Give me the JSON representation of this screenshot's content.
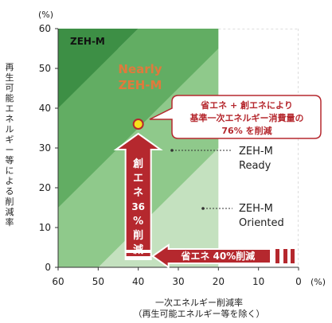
{
  "chart_data": {
    "type": "area",
    "x_axis": {
      "reversed": true,
      "range": [
        60,
        0
      ],
      "ticks": [
        60,
        50,
        40,
        30,
        20,
        10,
        0
      ],
      "unit": "(%)",
      "label_line1": "一次エネルギー削減率",
      "label_line2": "（再生可能エネルギー等を除く）"
    },
    "y_axis": {
      "range": [
        0,
        60
      ],
      "ticks": [
        0,
        10,
        20,
        30,
        40,
        50,
        60
      ],
      "unit": "(%)",
      "label": "再生可能エネルギー等による削減率"
    },
    "regions": [
      {
        "name": "ZEH-M",
        "label": "ZEH-M",
        "color": "#3d8f45"
      },
      {
        "name": "Nearly ZEH-M",
        "label_line1": "Nearly",
        "label_line2": "ZEH-M",
        "color": "#62ad63"
      },
      {
        "name": "ZEH-M Ready",
        "label_line1": "ZEH-M",
        "label_line2": "Ready",
        "color": "#8fc98b"
      },
      {
        "name": "ZEH-M Oriented",
        "label_line1": "ZEH-M",
        "label_line2": "Oriented",
        "color": "#c4e1bf"
      }
    ],
    "boundaries": [
      {
        "name": "100% total reduction",
        "x_plus_y": 100
      },
      {
        "name": "75% total reduction",
        "x_plus_y": 75
      },
      {
        "name": "50% total reduction",
        "x_plus_y": 50
      },
      {
        "name": "20% energy saving",
        "x": 20
      }
    ],
    "point": {
      "x": 40,
      "y": 36,
      "color": "#f6e11a"
    },
    "callout": {
      "line1": "省エネ + 創エネにより",
      "line2": "基準一次エネルギー消費量の",
      "line3": "76% を削減"
    },
    "arrow_up": {
      "label_chars": [
        "創",
        "エ",
        "ネ",
        "36",
        "%",
        "削",
        "減"
      ],
      "value": 36,
      "color": "#b5282e"
    },
    "arrow_left": {
      "label": "省エネ 40%削減",
      "value": 40,
      "color": "#b5282e"
    }
  }
}
